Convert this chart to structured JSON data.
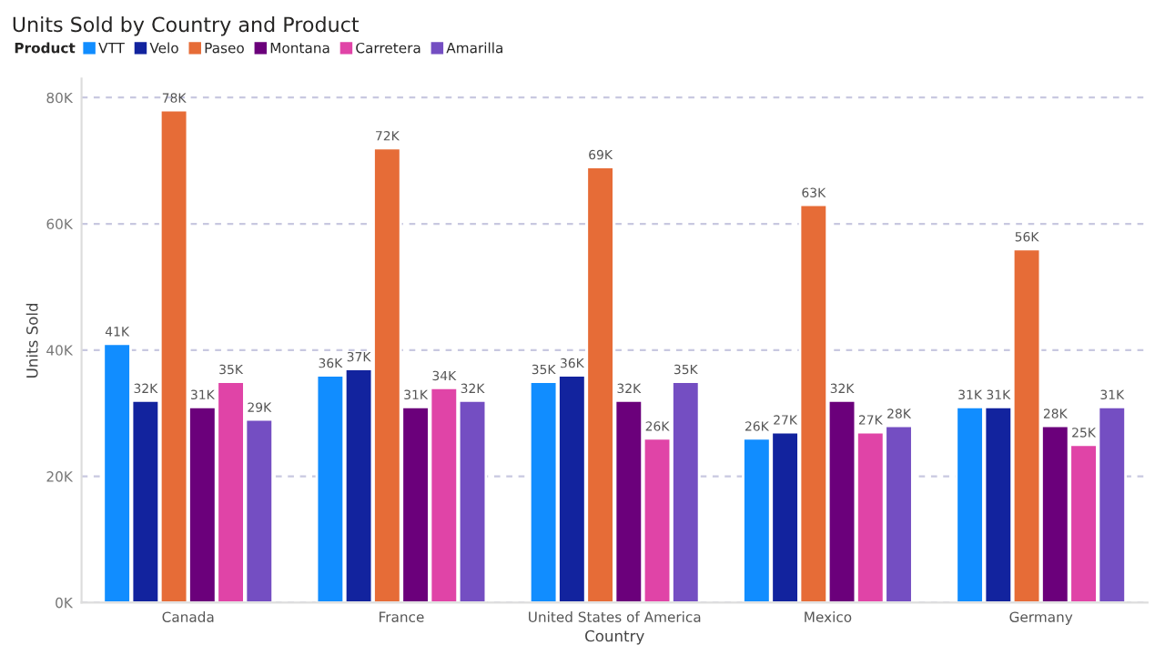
{
  "chart_data": {
    "type": "bar",
    "title": "Units Sold by Country and Product",
    "xlabel": "Country",
    "ylabel": "Units Sold",
    "legend_title": "Product",
    "categories": [
      "Canada",
      "France",
      "United States of America",
      "Mexico",
      "Germany"
    ],
    "series": [
      {
        "name": "VTT",
        "color": "#118dff",
        "values": [
          41000,
          36000,
          35000,
          26000,
          31000
        ],
        "value_labels": [
          "41K",
          "36K",
          "35K",
          "26K",
          "31K"
        ]
      },
      {
        "name": "Velo",
        "color": "#12239e",
        "values": [
          32000,
          37000,
          36000,
          27000,
          31000
        ],
        "value_labels": [
          "32K",
          "37K",
          "36K",
          "27K",
          "31K"
        ]
      },
      {
        "name": "Paseo",
        "color": "#e66c37",
        "values": [
          78000,
          72000,
          69000,
          63000,
          56000
        ],
        "value_labels": [
          "78K",
          "72K",
          "69K",
          "63K",
          "56K"
        ]
      },
      {
        "name": "Montana",
        "color": "#6b007b",
        "values": [
          31000,
          31000,
          32000,
          32000,
          28000
        ],
        "value_labels": [
          "31K",
          "31K",
          "32K",
          "32K",
          "28K"
        ]
      },
      {
        "name": "Carretera",
        "color": "#e044a7",
        "values": [
          35000,
          34000,
          26000,
          27000,
          25000
        ],
        "value_labels": [
          "35K",
          "34K",
          "26K",
          "27K",
          "25K"
        ]
      },
      {
        "name": "Amarilla",
        "color": "#744ec2",
        "values": [
          29000,
          32000,
          35000,
          28000,
          31000
        ],
        "value_labels": [
          "29K",
          "32K",
          "35K",
          "28K",
          "31K"
        ]
      }
    ],
    "ylim": [
      0,
      83000
    ],
    "yticks": [
      {
        "value": 0,
        "label": "0K"
      },
      {
        "value": 20000,
        "label": "20K"
      },
      {
        "value": 40000,
        "label": "40K"
      },
      {
        "value": 60000,
        "label": "60K"
      },
      {
        "value": 80000,
        "label": "80K"
      }
    ],
    "grid": "y",
    "legend": "top left"
  }
}
